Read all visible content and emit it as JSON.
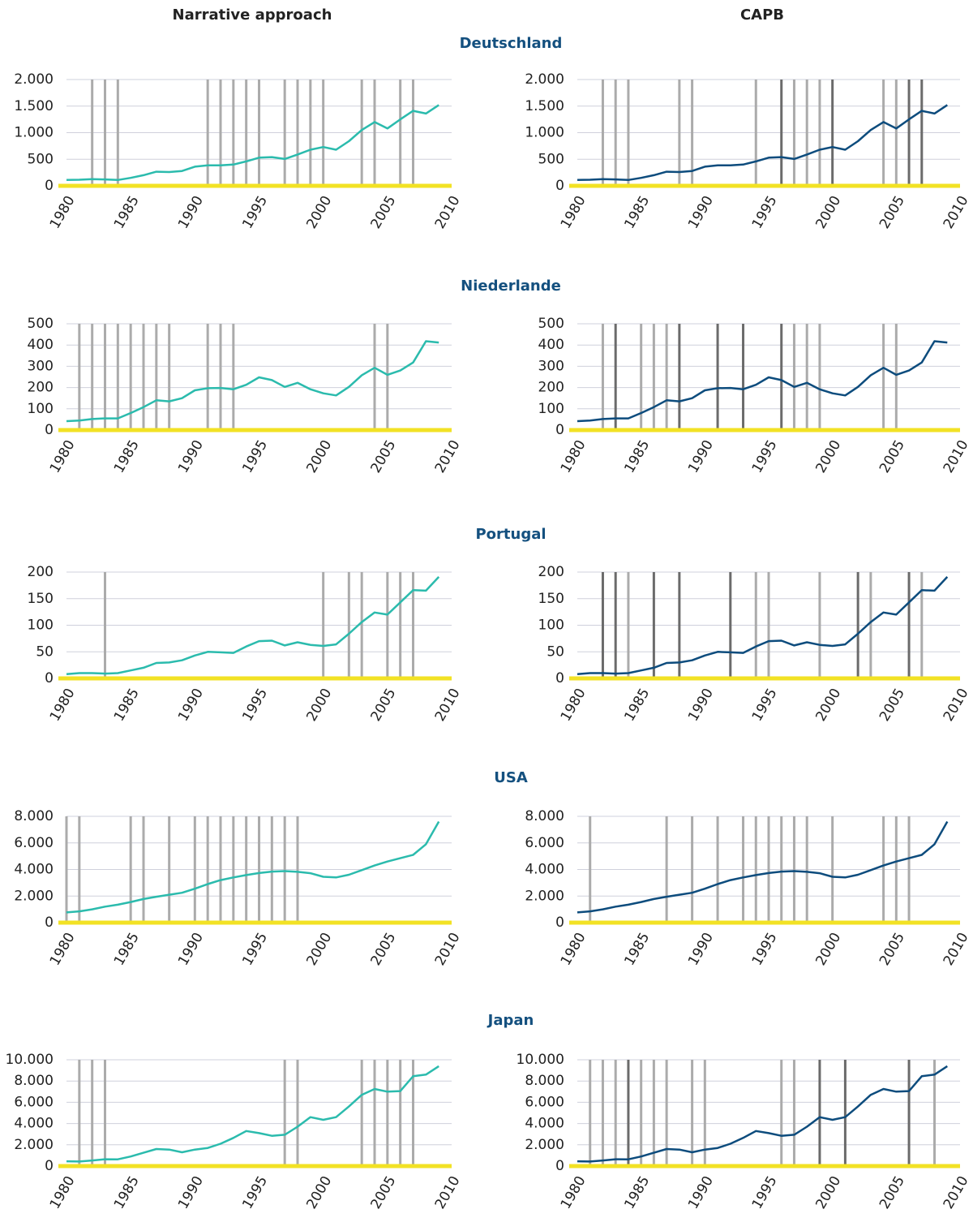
{
  "columns": [
    {
      "title": "Narrative approach",
      "color": "#2bbbad"
    },
    {
      "title": "CAPB",
      "color": "#0d4c7d"
    }
  ],
  "event_colors": {
    "light": "#ababab",
    "dark": "#6b6b6b"
  },
  "axis_color": "#f2e224",
  "chart_data": [
    {
      "type": "line",
      "title": "Deutschland",
      "x": [
        1980,
        1981,
        1982,
        1983,
        1984,
        1985,
        1986,
        1987,
        1988,
        1989,
        1990,
        1991,
        1992,
        1993,
        1994,
        1995,
        1996,
        1997,
        1998,
        1999,
        2000,
        2001,
        2002,
        2003,
        2004,
        2005,
        2006,
        2007,
        2008,
        2009
      ],
      "values": [
        110,
        115,
        125,
        120,
        110,
        150,
        200,
        265,
        260,
        280,
        360,
        385,
        385,
        400,
        460,
        530,
        540,
        505,
        590,
        680,
        730,
        680,
        840,
        1050,
        1200,
        1080,
        1250,
        1410,
        1360,
        1520
      ],
      "xlim": [
        1980,
        2010
      ],
      "xticks": [
        1980,
        1985,
        1990,
        1995,
        2000,
        2005,
        2010
      ],
      "ylim": [
        0,
        2000
      ],
      "yticks": [
        0,
        500,
        {
          "value": 1000,
          "label": "1.000"
        },
        {
          "value": 1500,
          "label": "1.500"
        },
        {
          "value": 2000,
          "label": "2.000"
        }
      ],
      "grid": true,
      "events": [
        {
          "years": [
            1982,
            1983,
            1984,
            1991,
            1992,
            1993,
            1994,
            1995,
            1997,
            1998,
            1999,
            2000,
            2003,
            2004,
            2006,
            2007
          ],
          "strong": []
        },
        {
          "years": [
            1982,
            1983,
            1984,
            1988,
            1989,
            1994,
            1997,
            1998,
            1999,
            2004,
            2005
          ],
          "strong": [
            1996,
            2000,
            2006,
            2007
          ]
        }
      ]
    },
    {
      "type": "line",
      "title": "Niederlande",
      "x": [
        1980,
        1981,
        1982,
        1983,
        1984,
        1985,
        1986,
        1987,
        1988,
        1989,
        1990,
        1991,
        1992,
        1993,
        1994,
        1995,
        1996,
        1997,
        1998,
        1999,
        2000,
        2001,
        2002,
        2003,
        2004,
        2005,
        2006,
        2007,
        2008,
        2009
      ],
      "values": [
        42,
        45,
        52,
        55,
        55,
        80,
        108,
        140,
        135,
        150,
        187,
        197,
        198,
        192,
        213,
        248,
        235,
        203,
        222,
        192,
        173,
        163,
        203,
        258,
        293,
        260,
        280,
        318,
        418,
        412
      ],
      "xlim": [
        1980,
        2010
      ],
      "xticks": [
        1980,
        1985,
        1990,
        1995,
        2000,
        2005,
        2010
      ],
      "ylim": [
        0,
        500
      ],
      "yticks": [
        0,
        100,
        200,
        300,
        400,
        500
      ],
      "grid": true,
      "events": [
        {
          "years": [
            1981,
            1982,
            1983,
            1984,
            1985,
            1986,
            1987,
            1988,
            1991,
            1992,
            1993,
            2004,
            2005
          ],
          "strong": []
        },
        {
          "years": [
            1982,
            1985,
            1986,
            1987,
            1997,
            1998,
            1999,
            2004,
            2005
          ],
          "strong": [
            1983,
            1988,
            1991,
            1993,
            1996
          ]
        }
      ]
    },
    {
      "type": "line",
      "title": "Portugal",
      "x": [
        1980,
        1981,
        1982,
        1983,
        1984,
        1985,
        1986,
        1987,
        1988,
        1989,
        1990,
        1991,
        1992,
        1993,
        1994,
        1995,
        1996,
        1997,
        1998,
        1999,
        2000,
        2001,
        2002,
        2003,
        2004,
        2005,
        2006,
        2007,
        2008,
        2009
      ],
      "values": [
        8,
        10,
        10,
        9,
        10,
        15,
        20,
        29,
        30,
        34,
        43,
        50,
        49,
        48,
        60,
        70,
        71,
        62,
        68,
        63,
        61,
        64,
        84,
        106,
        124,
        120,
        143,
        166,
        165,
        191
      ],
      "xlim": [
        1980,
        2010
      ],
      "xticks": [
        1980,
        1985,
        1990,
        1995,
        2000,
        2005,
        2010
      ],
      "ylim": [
        0,
        200
      ],
      "yticks": [
        0,
        50,
        100,
        150,
        200
      ],
      "grid": true,
      "events": [
        {
          "years": [
            1983,
            2000,
            2002,
            2003,
            2005,
            2006,
            2007
          ],
          "strong": []
        },
        {
          "years": [
            1984,
            1994,
            1995,
            1999,
            2003,
            2007
          ],
          "strong": [
            1982,
            1983,
            1986,
            1988,
            1992,
            2002,
            2006
          ]
        }
      ]
    },
    {
      "type": "line",
      "title": "USA",
      "x": [
        1980,
        1981,
        1982,
        1983,
        1984,
        1985,
        1986,
        1987,
        1988,
        1989,
        1990,
        1991,
        1992,
        1993,
        1994,
        1995,
        1996,
        1997,
        1998,
        1999,
        2000,
        2001,
        2002,
        2003,
        2004,
        2005,
        2006,
        2007,
        2008,
        2009
      ],
      "values": [
        770,
        850,
        1000,
        1200,
        1350,
        1550,
        1780,
        1950,
        2100,
        2250,
        2550,
        2900,
        3200,
        3400,
        3580,
        3730,
        3840,
        3880,
        3820,
        3720,
        3450,
        3400,
        3600,
        3950,
        4300,
        4600,
        4850,
        5100,
        5900,
        7600
      ],
      "xlim": [
        1980,
        2010
      ],
      "xticks": [
        1980,
        1985,
        1990,
        1995,
        2000,
        2005,
        2010
      ],
      "ylim": [
        0,
        8000
      ],
      "yticks": [
        0,
        {
          "value": 2000,
          "label": "2.000"
        },
        {
          "value": 4000,
          "label": "4.000"
        },
        {
          "value": 6000,
          "label": "6.000"
        },
        {
          "value": 8000,
          "label": "8.000"
        }
      ],
      "grid": true,
      "events": [
        {
          "years": [
            1980,
            1981,
            1985,
            1986,
            1988,
            1990,
            1991,
            1992,
            1993,
            1994,
            1995,
            1996,
            1997,
            1998
          ],
          "strong": []
        },
        {
          "years": [
            1981,
            1987,
            1989,
            1991,
            1993,
            1994,
            1995,
            1996,
            1997,
            1998,
            2000,
            2004,
            2005,
            2006
          ],
          "strong": []
        }
      ]
    },
    {
      "type": "line",
      "title": "Japan",
      "x": [
        1980,
        1981,
        1982,
        1983,
        1984,
        1985,
        1986,
        1987,
        1988,
        1989,
        1990,
        1991,
        1992,
        1993,
        1994,
        1995,
        1996,
        1997,
        1998,
        1999,
        2000,
        2001,
        2002,
        2003,
        2004,
        2005,
        2006,
        2007,
        2008,
        2009
      ],
      "values": [
        450,
        430,
        530,
        640,
        630,
        900,
        1250,
        1600,
        1550,
        1300,
        1550,
        1700,
        2100,
        2650,
        3300,
        3100,
        2850,
        2950,
        3700,
        4600,
        4350,
        4600,
        5600,
        6700,
        7250,
        7000,
        7050,
        8450,
        8600,
        9400
      ],
      "xlim": [
        1980,
        2010
      ],
      "xticks": [
        1980,
        1985,
        1990,
        1995,
        2000,
        2005,
        2010
      ],
      "ylim": [
        0,
        10000
      ],
      "yticks": [
        0,
        {
          "value": 2000,
          "label": "2.000"
        },
        {
          "value": 4000,
          "label": "4.000"
        },
        {
          "value": 6000,
          "label": "6.000"
        },
        {
          "value": 8000,
          "label": "8.000"
        },
        {
          "value": 10000,
          "label": "10.000"
        }
      ],
      "grid": true,
      "events": [
        {
          "years": [
            1981,
            1982,
            1983,
            1997,
            1998,
            2003,
            2004,
            2005,
            2006,
            2007
          ],
          "strong": []
        },
        {
          "years": [
            1981,
            1982,
            1983,
            1985,
            1986,
            1987,
            1989,
            1990,
            1996,
            1997,
            2008
          ],
          "strong": [
            1984,
            1999,
            2001,
            2006
          ]
        }
      ]
    }
  ]
}
